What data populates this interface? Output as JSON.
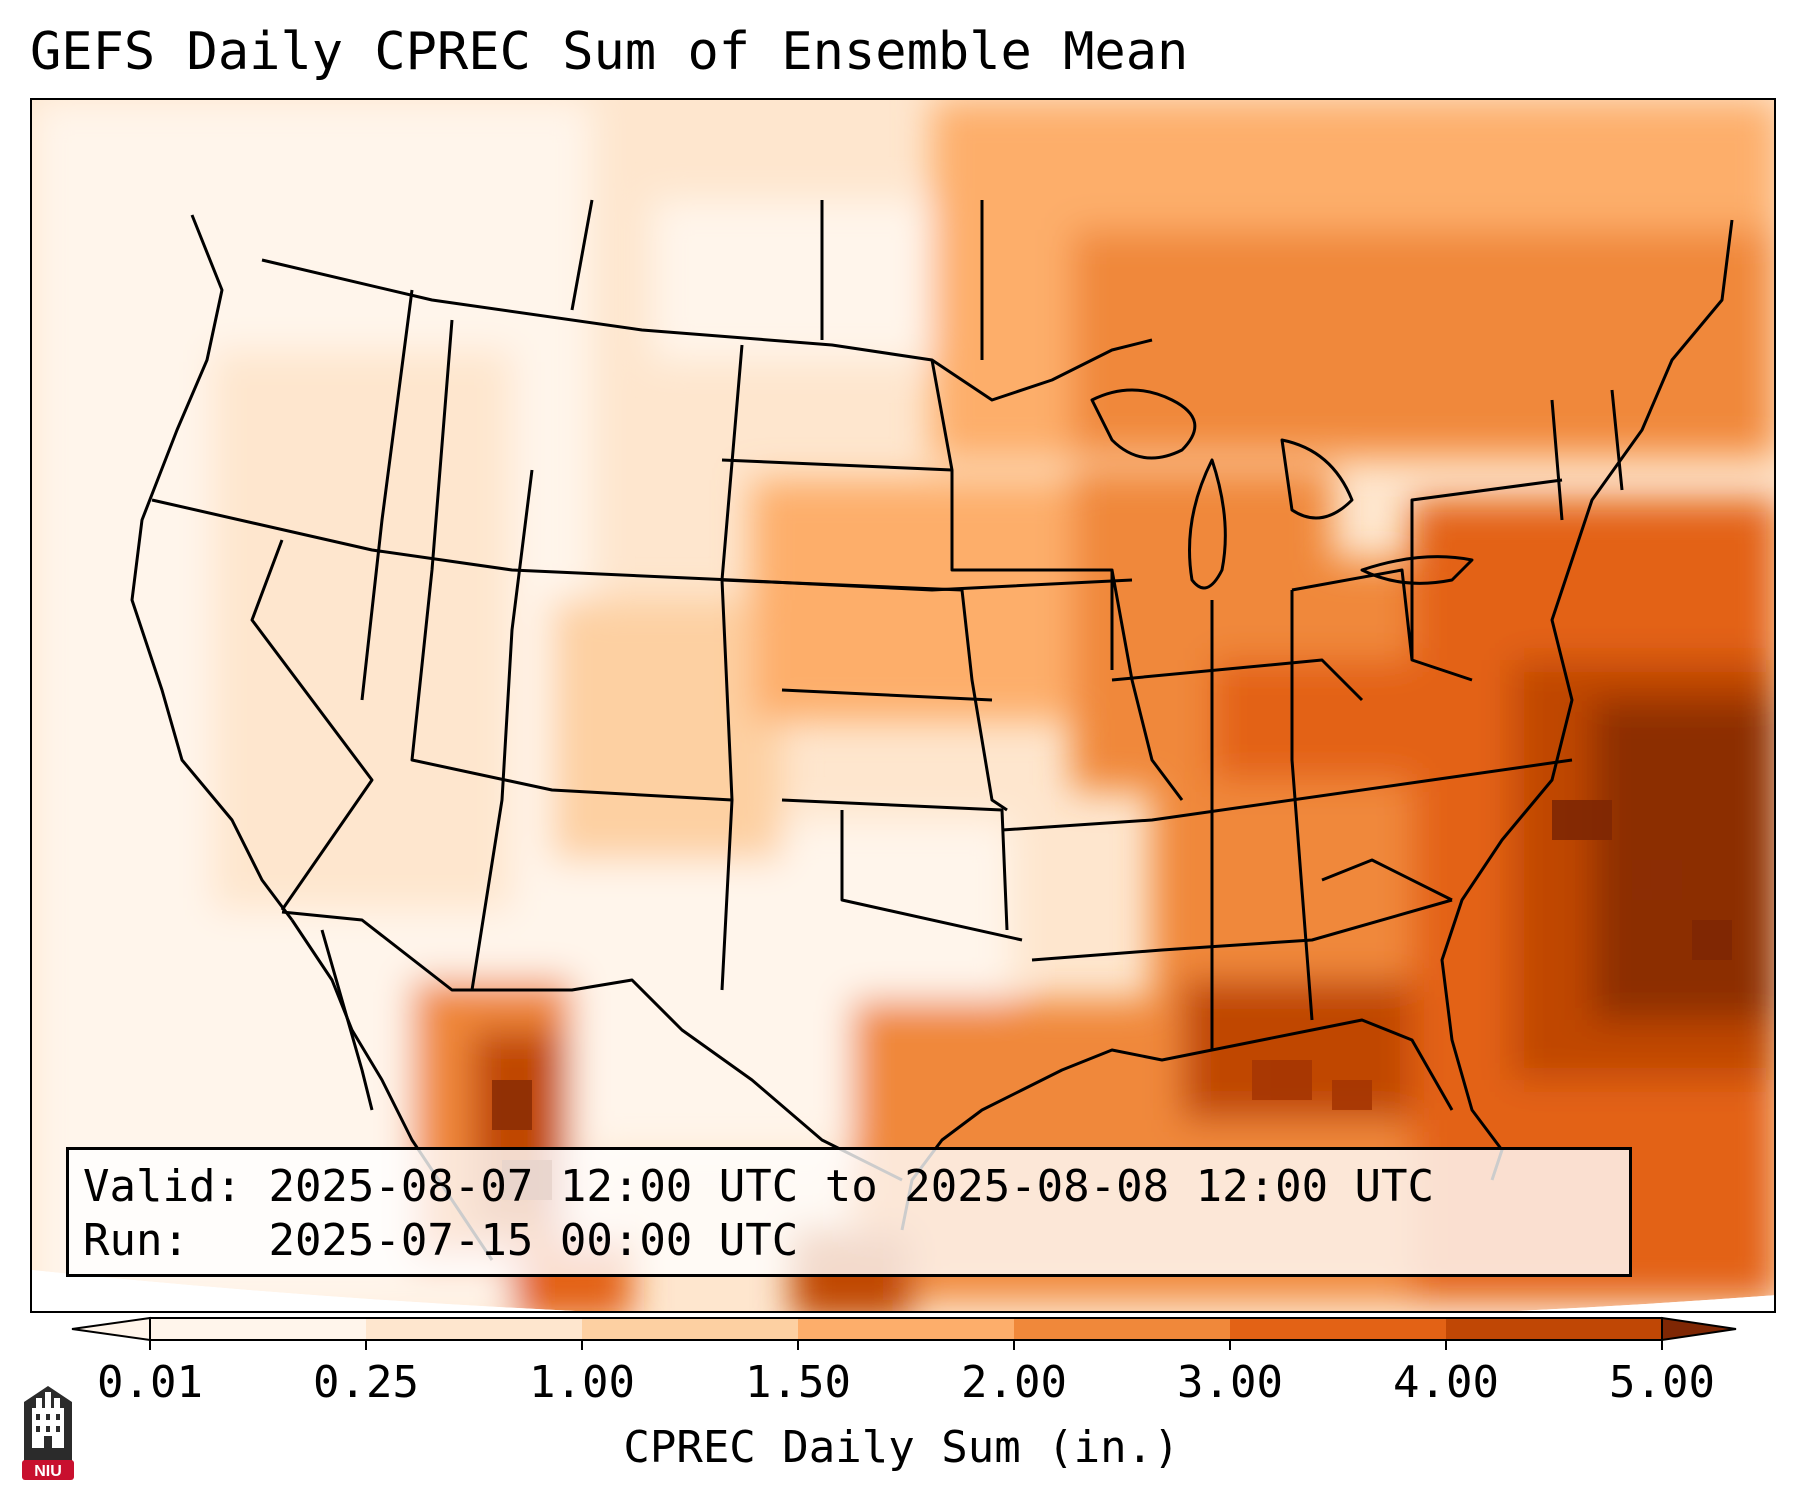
{
  "title": "GEFS Daily CPREC Sum of Ensemble Mean",
  "info": {
    "valid_label": "Valid:",
    "valid_value": "2025-08-07 12:00 UTC to 2025-08-08 12:00 UTC",
    "run_label": "Run:",
    "run_value": "2025-07-15 00:00 UTC"
  },
  "colorbar": {
    "label": "CPREC Daily Sum (in.)",
    "ticks": [
      "0.01",
      "0.25",
      "1.00",
      "1.50",
      "2.00",
      "3.00",
      "4.00",
      "5.00"
    ],
    "colors": [
      "#fff5eb",
      "#fee6ce",
      "#fdd0a2",
      "#fdae6b",
      "#f0883a",
      "#e36215",
      "#c04705",
      "#8c2d04"
    ],
    "under_color": "#fff5eb",
    "over_color": "#7f2704"
  },
  "logo": {
    "text": "NIU",
    "color": "#c8102e"
  },
  "map": {
    "projection": "lambert-conformal",
    "region": "CONUS",
    "ocean_color": "#ffffff",
    "border_color": "#000000"
  }
}
